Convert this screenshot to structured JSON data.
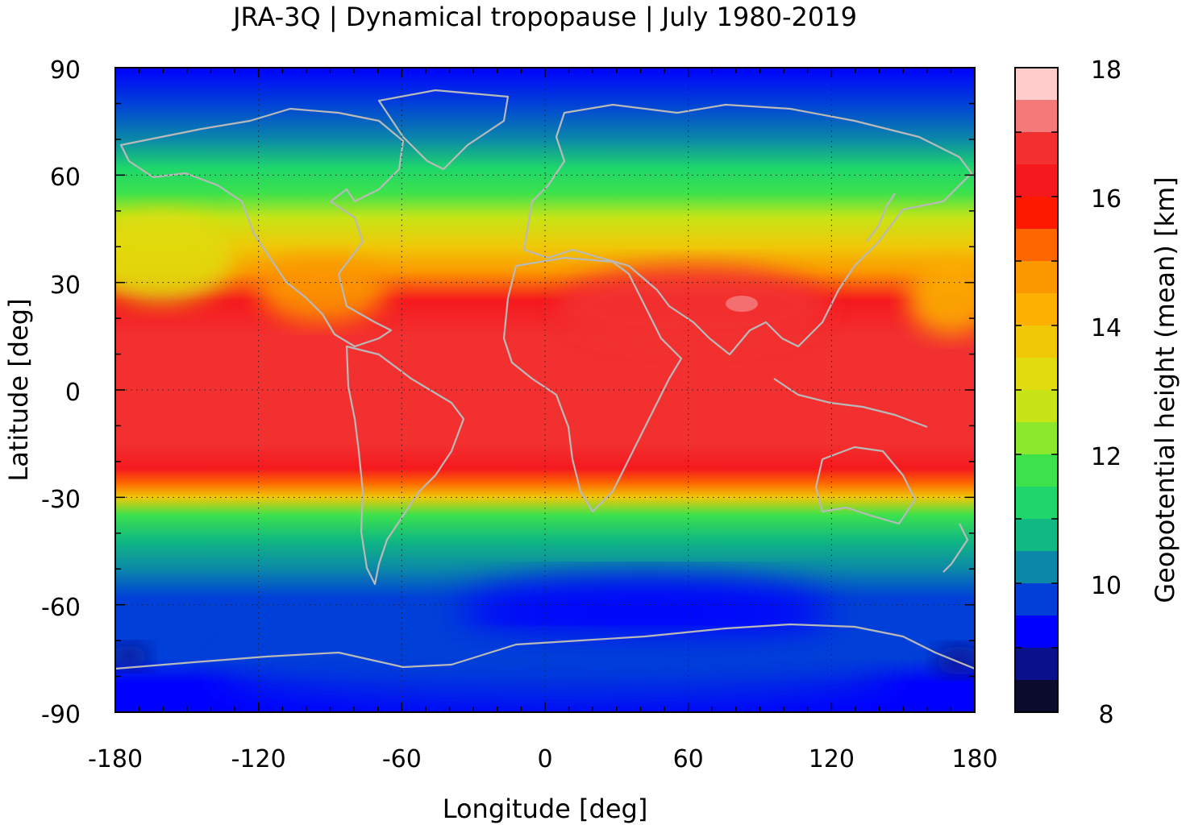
{
  "chart_data": {
    "type": "heatmap",
    "title": "JRA-3Q | Dynamical tropopause | July 1980-2019",
    "xlabel": "Longitude [deg]",
    "ylabel": "Latitude [deg]",
    "xlim": [
      -180,
      180
    ],
    "ylim": [
      -90,
      90
    ],
    "x_ticks": [
      "-180",
      "-120",
      "-60",
      "0",
      "60",
      "120",
      "180"
    ],
    "y_ticks": [
      "90",
      "60",
      "30",
      "0",
      "-30",
      "-60",
      "-90"
    ],
    "grid": true,
    "colorbar": {
      "label": "Geopotential height (mean) [km]",
      "range": [
        8,
        18
      ],
      "ticks": [
        "8",
        "10",
        "12",
        "14",
        "16",
        "18"
      ],
      "levels": [
        {
          "from": 8.0,
          "to": 8.5,
          "color": "#0b0b2d"
        },
        {
          "from": 8.5,
          "to": 9.0,
          "color": "#0a0f8c"
        },
        {
          "from": 9.0,
          "to": 9.5,
          "color": "#0000ff"
        },
        {
          "from": 9.5,
          "to": 10.0,
          "color": "#0040d8"
        },
        {
          "from": 10.0,
          "to": 10.5,
          "color": "#0b88a8"
        },
        {
          "from": 10.5,
          "to": 11.0,
          "color": "#10b882"
        },
        {
          "from": 11.0,
          "to": 11.5,
          "color": "#1ed66c"
        },
        {
          "from": 11.5,
          "to": 12.0,
          "color": "#3ce24c"
        },
        {
          "from": 12.0,
          "to": 12.5,
          "color": "#8ce82c"
        },
        {
          "from": 12.5,
          "to": 13.0,
          "color": "#c8e416"
        },
        {
          "from": 13.0,
          "to": 13.5,
          "color": "#e0dc10"
        },
        {
          "from": 13.5,
          "to": 14.0,
          "color": "#f0c808"
        },
        {
          "from": 14.0,
          "to": 14.5,
          "color": "#fbb002"
        },
        {
          "from": 14.5,
          "to": 15.0,
          "color": "#fb9800"
        },
        {
          "from": 15.0,
          "to": 15.5,
          "color": "#fd6600"
        },
        {
          "from": 15.5,
          "to": 16.0,
          "color": "#fd1800"
        },
        {
          "from": 16.0,
          "to": 16.5,
          "color": "#f5191e"
        },
        {
          "from": 16.5,
          "to": 17.0,
          "color": "#f23030"
        },
        {
          "from": 17.0,
          "to": 17.5,
          "color": "#f47a7a"
        },
        {
          "from": 17.5,
          "to": 18.0,
          "color": "#ffcccc"
        }
      ]
    },
    "zonal_profile": [
      {
        "lat": 90,
        "value": 9.3
      },
      {
        "lat": 80,
        "value": 9.8
      },
      {
        "lat": 70,
        "value": 10.4
      },
      {
        "lat": 62,
        "value": 11.0
      },
      {
        "lat": 55,
        "value": 11.8
      },
      {
        "lat": 48,
        "value": 12.6
      },
      {
        "lat": 40,
        "value": 13.6
      },
      {
        "lat": 33,
        "value": 14.8
      },
      {
        "lat": 25,
        "value": 16.2
      },
      {
        "lat": 15,
        "value": 16.6
      },
      {
        "lat": 5,
        "value": 16.7
      },
      {
        "lat": -5,
        "value": 16.7
      },
      {
        "lat": -15,
        "value": 16.5
      },
      {
        "lat": -22,
        "value": 16.2
      },
      {
        "lat": -26,
        "value": 15.4
      },
      {
        "lat": -30,
        "value": 13.8
      },
      {
        "lat": -35,
        "value": 11.9
      },
      {
        "lat": -42,
        "value": 10.8
      },
      {
        "lat": -50,
        "value": 10.2
      },
      {
        "lat": -58,
        "value": 9.8
      },
      {
        "lat": -65,
        "value": 9.5
      },
      {
        "lat": -75,
        "value": 9.6
      },
      {
        "lat": -82,
        "value": 9.4
      },
      {
        "lat": -90,
        "value": 9.3
      }
    ]
  }
}
